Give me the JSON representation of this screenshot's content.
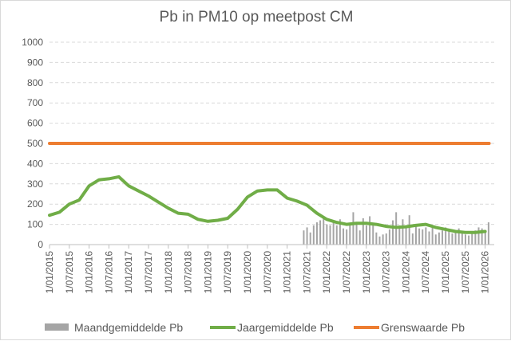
{
  "chart_data": {
    "type": "line",
    "title": "Pb in PM10 op meetpost CM",
    "xlabel": "",
    "ylabel": "",
    "ylim": [
      0,
      1000
    ],
    "yticks": [
      "0",
      "100",
      "200",
      "300",
      "400",
      "500",
      "600",
      "700",
      "800",
      "900",
      "1000"
    ],
    "xticks": [
      "1/01/2015",
      "1/07/2015",
      "1/01/2016",
      "1/07/2016",
      "1/01/2017",
      "1/07/2017",
      "1/01/2018",
      "1/07/2018",
      "1/01/2019",
      "1/07/2019",
      "1/01/2020",
      "1/07/2020",
      "1/01/2021",
      "1/07/2021",
      "1/01/2022",
      "1/07/2022",
      "1/01/2023",
      "1/07/2023",
      "1/01/2024",
      "1/07/2024",
      "1/01/2025",
      "1/07/2025",
      "1/01/2026"
    ],
    "grid": "horizontal dashed",
    "legend_position": "bottom",
    "series": [
      {
        "name": "Maandgemiddelde Pb",
        "type": "bar",
        "color": "#a5a5a5",
        "start_year": 2021.42,
        "values": [
          70,
          85,
          60,
          95,
          110,
          120,
          135,
          100,
          95,
          110,
          95,
          125,
          80,
          75,
          100,
          160,
          110,
          70,
          130,
          95,
          140,
          95,
          60,
          40,
          50,
          55,
          75,
          120,
          160,
          95,
          125,
          90,
          145,
          55,
          100,
          80,
          75,
          85,
          65,
          95,
          50,
          60,
          70,
          85,
          70,
          55,
          65,
          80,
          60,
          50,
          45,
          55,
          70,
          85,
          80,
          60,
          110
        ]
      },
      {
        "name": "Jaargemiddelde Pb",
        "type": "line",
        "color": "#70ad47",
        "x": [
          2015.0,
          2015.25,
          2015.5,
          2015.75,
          2016.0,
          2016.25,
          2016.5,
          2016.75,
          2017.0,
          2017.25,
          2017.5,
          2017.75,
          2018.0,
          2018.25,
          2018.5,
          2018.75,
          2019.0,
          2019.25,
          2019.5,
          2019.75,
          2020.0,
          2020.25,
          2020.5,
          2020.75,
          2021.0,
          2021.25,
          2021.5,
          2021.75,
          2022.0,
          2022.25,
          2022.5,
          2022.75,
          2023.0,
          2023.25,
          2023.5,
          2023.75,
          2024.0,
          2024.25,
          2024.5,
          2024.75,
          2025.0,
          2025.25,
          2025.5,
          2025.75,
          2026.0
        ],
        "values": [
          145,
          160,
          200,
          220,
          290,
          320,
          325,
          335,
          290,
          265,
          240,
          210,
          180,
          155,
          150,
          125,
          115,
          120,
          130,
          175,
          235,
          265,
          270,
          270,
          230,
          215,
          195,
          155,
          125,
          110,
          100,
          105,
          105,
          100,
          90,
          85,
          88,
          95,
          100,
          85,
          75,
          65,
          60,
          60,
          65
        ]
      },
      {
        "name": "Grenswaarde Pb",
        "type": "line",
        "color": "#ed7d31",
        "x": [
          2015.0,
          2026.1
        ],
        "values": [
          500,
          500
        ]
      }
    ]
  }
}
